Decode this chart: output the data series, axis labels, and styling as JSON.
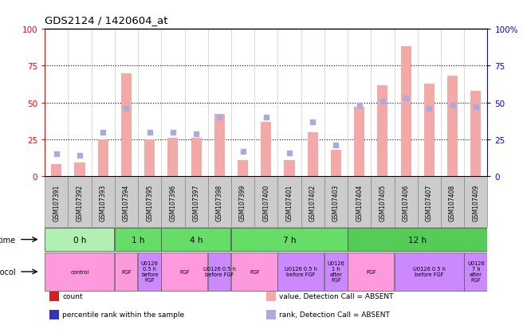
{
  "title": "GDS2124 / 1420604_at",
  "samples": [
    "GSM107391",
    "GSM107392",
    "GSM107393",
    "GSM107394",
    "GSM107395",
    "GSM107396",
    "GSM107397",
    "GSM107398",
    "GSM107399",
    "GSM107400",
    "GSM107401",
    "GSM107402",
    "GSM107403",
    "GSM107404",
    "GSM107405",
    "GSM107406",
    "GSM107407",
    "GSM107408",
    "GSM107409"
  ],
  "bar_values": [
    8,
    9,
    25,
    70,
    25,
    26,
    26,
    42,
    11,
    37,
    11,
    30,
    18,
    47,
    62,
    88,
    63,
    68,
    58
  ],
  "rank_values": [
    15,
    14,
    30,
    46,
    30,
    30,
    29,
    40,
    17,
    40,
    16,
    37,
    21,
    48,
    51,
    53,
    46,
    48,
    47
  ],
  "absent_bar": [
    true,
    true,
    true,
    true,
    true,
    true,
    true,
    true,
    true,
    true,
    true,
    true,
    true,
    true,
    true,
    true,
    true,
    true,
    true
  ],
  "bar_color_absent": "#f4a9a9",
  "rank_color_absent": "#aaaadd",
  "ylim_left": [
    0,
    100
  ],
  "yticks_left": [
    0,
    25,
    50,
    75,
    100
  ],
  "ytick_labels_right": [
    "0",
    "25",
    "50",
    "75",
    "100%"
  ],
  "grid_lines": [
    25,
    50,
    75
  ],
  "time_groups": [
    {
      "label": "0 h",
      "start": 0,
      "end": 3,
      "color": "#b2f0b2"
    },
    {
      "label": "1 h",
      "start": 3,
      "end": 5,
      "color": "#66dd66"
    },
    {
      "label": "4 h",
      "start": 5,
      "end": 8,
      "color": "#66dd66"
    },
    {
      "label": "7 h",
      "start": 8,
      "end": 13,
      "color": "#66dd66"
    },
    {
      "label": "12 h",
      "start": 13,
      "end": 19,
      "color": "#55cc55"
    }
  ],
  "protocol_groups": [
    {
      "label": "control",
      "start": 0,
      "end": 3,
      "color": "#ff99dd"
    },
    {
      "label": "FGF",
      "start": 3,
      "end": 4,
      "color": "#ff99dd"
    },
    {
      "label": "U0126\n0.5 h\nbefore\nFGF",
      "start": 4,
      "end": 5,
      "color": "#cc88ff"
    },
    {
      "label": "FGF",
      "start": 5,
      "end": 7,
      "color": "#ff99dd"
    },
    {
      "label": "U0126 0.5 h\nbefore FGF",
      "start": 7,
      "end": 8,
      "color": "#cc88ff"
    },
    {
      "label": "FGF",
      "start": 8,
      "end": 10,
      "color": "#ff99dd"
    },
    {
      "label": "U0126 0.5 h\nbefore FGF",
      "start": 10,
      "end": 12,
      "color": "#cc88ff"
    },
    {
      "label": "U0126\n1 h\nafter\nFGF",
      "start": 12,
      "end": 13,
      "color": "#cc88ff"
    },
    {
      "label": "FGF",
      "start": 13,
      "end": 15,
      "color": "#ff99dd"
    },
    {
      "label": "U0126 0.5 h\nbefore FGF",
      "start": 15,
      "end": 18,
      "color": "#cc88ff"
    },
    {
      "label": "U0126\n7 h\nafter\nFGF",
      "start": 18,
      "end": 19,
      "color": "#cc88ff"
    }
  ],
  "legend": [
    {
      "label": "count",
      "color": "#cc2222"
    },
    {
      "label": "percentile rank within the sample",
      "color": "#3333bb"
    },
    {
      "label": "value, Detection Call = ABSENT",
      "color": "#f4a9a9"
    },
    {
      "label": "rank, Detection Call = ABSENT",
      "color": "#aaaadd"
    }
  ],
  "sample_bg": "#cccccc"
}
